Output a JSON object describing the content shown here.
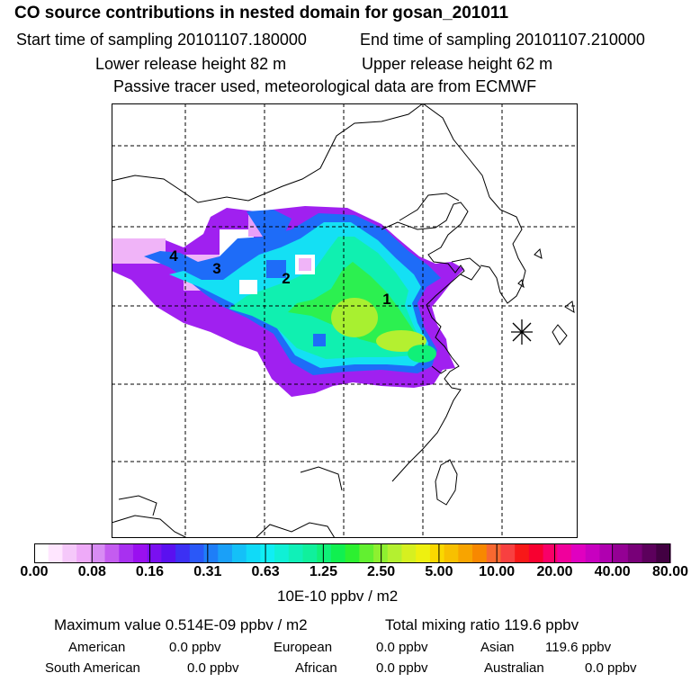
{
  "header": {
    "title": "CO  source contributions in nested domain for gosan_201011",
    "start_time": "Start time of sampling 20101107.180000",
    "end_time": "End time of sampling 20101107.210000",
    "lower_release": "Lower release height   82 m",
    "upper_release": "Upper release height   62 m",
    "tracer_note": "Passive tracer used, meteorological data are from ECMWF"
  },
  "map": {
    "region_labels": [
      "1",
      "2",
      "3",
      "4"
    ],
    "receptor_marker": "star-marker"
  },
  "colorbar": {
    "tick_labels": [
      "0.00",
      "0.08",
      "0.16",
      "0.31",
      "0.63",
      "1.25",
      "2.50",
      "5.00",
      "10.00",
      "20.00",
      "40.00",
      "80.00"
    ],
    "colors": [
      "#ffffff",
      "#ffe6ff",
      "#f5c8fa",
      "#eeaaf8",
      "#d88cf4",
      "#c45cf0",
      "#a830f0",
      "#9a10f0",
      "#7a10f0",
      "#5a10f0",
      "#3c30f4",
      "#2a58f8",
      "#1e7ef8",
      "#1aa0f8",
      "#14c0f8",
      "#10daf8",
      "#10eef4",
      "#10f0d6",
      "#10f0b8",
      "#10f09c",
      "#10f078",
      "#10f050",
      "#2cf030",
      "#62f030",
      "#8ef030",
      "#b4f030",
      "#d6f020",
      "#eef010",
      "#fad800",
      "#f8c000",
      "#f8a400",
      "#f88800",
      "#f86830",
      "#f84040",
      "#f81818",
      "#f80030",
      "#f80068",
      "#f0009c",
      "#e000c0",
      "#c800c0",
      "#b000b0",
      "#940094",
      "#780078",
      "#5c005c",
      "#420042"
    ],
    "units": "10E-10 ppbv / m2"
  },
  "stats": {
    "max_value": "Maximum value  0.514E-09 ppbv / m2",
    "total_mixing": "Total mixing ratio      119.6 ppbv",
    "american_label": "American",
    "american_value": "0.0 ppbv",
    "european_label": "European",
    "european_value": "0.0 ppbv",
    "asian_label": "Asian",
    "asian_value": "119.6 ppbv",
    "south_american_label": "South American",
    "south_american_value": "0.0 ppbv",
    "african_label": "African",
    "african_value": "0.0 ppbv",
    "australian_label": "Australian",
    "australian_value": "0.0 ppbv"
  }
}
